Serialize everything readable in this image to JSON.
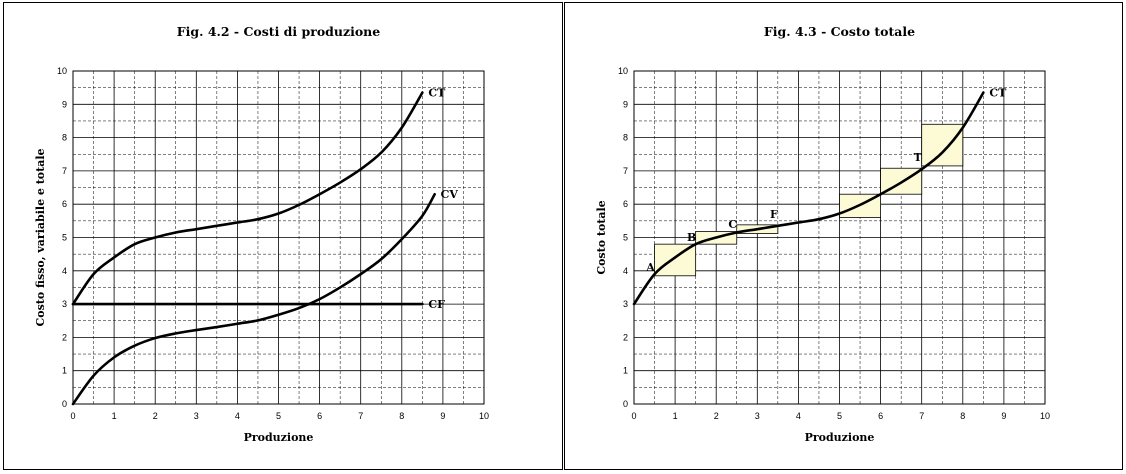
{
  "chart_data": [
    {
      "type": "line",
      "title": "Fig. 4.2 - Costi di produzione",
      "xlabel": "Produzione",
      "ylabel": "Costo fisso, variabile e totale",
      "xlim": [
        0,
        10
      ],
      "ylim": [
        0,
        10
      ],
      "xticks": [
        "0",
        "1",
        "2",
        "3",
        "4",
        "5",
        "6",
        "7",
        "8",
        "9",
        "10"
      ],
      "yticks": [
        "0",
        "1",
        "2",
        "3",
        "4",
        "5",
        "6",
        "7",
        "8",
        "9",
        "10"
      ],
      "grid": "on",
      "series": [
        {
          "name": "CT",
          "points": [
            [
              0,
              3
            ],
            [
              0.5,
              3.9
            ],
            [
              1,
              4.4
            ],
            [
              1.5,
              4.8
            ],
            [
              2,
              5.0
            ],
            [
              2.5,
              5.15
            ],
            [
              3,
              5.25
            ],
            [
              3.5,
              5.35
            ],
            [
              4,
              5.45
            ],
            [
              4.5,
              5.55
            ],
            [
              5,
              5.72
            ],
            [
              5.5,
              5.98
            ],
            [
              6,
              6.3
            ],
            [
              6.5,
              6.65
            ],
            [
              7,
              7.05
            ],
            [
              7.5,
              7.55
            ],
            [
              8,
              8.3
            ],
            [
              8.5,
              9.35
            ]
          ]
        },
        {
          "name": "CV",
          "points": [
            [
              0,
              0
            ],
            [
              0.5,
              0.85
            ],
            [
              1,
              1.4
            ],
            [
              1.5,
              1.75
            ],
            [
              2,
              1.98
            ],
            [
              2.5,
              2.12
            ],
            [
              3,
              2.22
            ],
            [
              3.5,
              2.31
            ],
            [
              4,
              2.41
            ],
            [
              4.5,
              2.51
            ],
            [
              5,
              2.68
            ],
            [
              5.5,
              2.88
            ],
            [
              6,
              3.15
            ],
            [
              6.5,
              3.5
            ],
            [
              7,
              3.9
            ],
            [
              7.5,
              4.35
            ],
            [
              8,
              4.95
            ],
            [
              8.5,
              5.65
            ],
            [
              8.8,
              6.3
            ]
          ]
        },
        {
          "name": "CF",
          "points": [
            [
              0,
              3
            ],
            [
              8.5,
              3
            ]
          ]
        }
      ]
    },
    {
      "type": "line",
      "title": "Fig. 4.3 - Costo totale",
      "xlabel": "Produzione",
      "ylabel": "Costo totale",
      "xlim": [
        0,
        10
      ],
      "ylim": [
        0,
        10
      ],
      "xticks": [
        "0",
        "1",
        "2",
        "3",
        "4",
        "5",
        "6",
        "7",
        "8",
        "9",
        "10"
      ],
      "yticks": [
        "0",
        "1",
        "2",
        "3",
        "4",
        "5",
        "6",
        "7",
        "8",
        "9",
        "10"
      ],
      "grid": "on",
      "series": [
        {
          "name": "CT",
          "points": [
            [
              0,
              3
            ],
            [
              0.5,
              3.9
            ],
            [
              1,
              4.4
            ],
            [
              1.5,
              4.8
            ],
            [
              2,
              5.0
            ],
            [
              2.5,
              5.15
            ],
            [
              3,
              5.25
            ],
            [
              3.5,
              5.35
            ],
            [
              4,
              5.45
            ],
            [
              4.5,
              5.55
            ],
            [
              5,
              5.72
            ],
            [
              5.5,
              5.98
            ],
            [
              6,
              6.3
            ],
            [
              6.5,
              6.65
            ],
            [
              7,
              7.05
            ],
            [
              7.5,
              7.55
            ],
            [
              8,
              8.3
            ],
            [
              8.5,
              9.35
            ]
          ]
        }
      ],
      "steps": [
        {
          "x0": 0.5,
          "x1": 1.5,
          "y0": 3.85,
          "y1": 4.8
        },
        {
          "x0": 1.5,
          "x1": 2.5,
          "y0": 4.8,
          "y1": 5.18
        },
        {
          "x0": 2.5,
          "x1": 3.5,
          "y0": 5.12,
          "y1": 5.38
        },
        {
          "x0": 5.0,
          "x1": 6.0,
          "y0": 5.6,
          "y1": 6.3
        },
        {
          "x0": 6.0,
          "x1": 7.0,
          "y0": 6.3,
          "y1": 7.08
        },
        {
          "x0": 7.0,
          "x1": 8.0,
          "y0": 7.15,
          "y1": 8.4
        }
      ],
      "annotations": [
        {
          "text": "A",
          "x": 0.5,
          "y": 3.9
        },
        {
          "text": "B",
          "x": 1.5,
          "y": 4.8
        },
        {
          "text": "C",
          "x": 2.5,
          "y": 5.2
        },
        {
          "text": "F",
          "x": 3.5,
          "y": 5.5
        },
        {
          "text": "T",
          "x": 7.0,
          "y": 7.2
        }
      ]
    }
  ]
}
